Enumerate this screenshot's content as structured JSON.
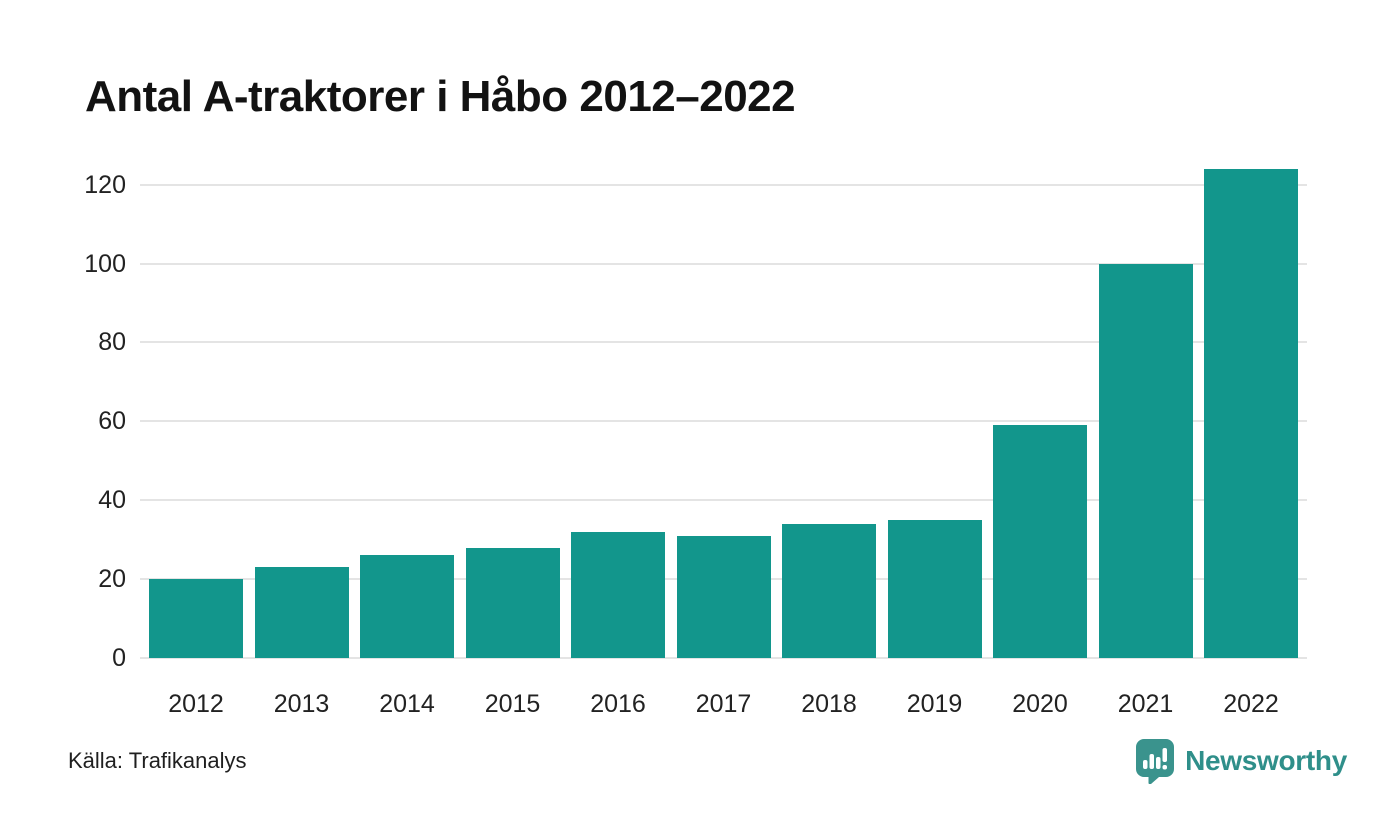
{
  "title": "Antal A-traktorer i Håbo 2012–2022",
  "source": "Källa: Trafikanalys",
  "branding": {
    "name": "Newsworthy",
    "icon": "newsworthy-pin-chart-icon",
    "color": "#2f8f8a"
  },
  "colors": {
    "bar": "#12968c",
    "grid": "#e4e4e4",
    "title_text": "#121212",
    "axis_text": "#222222",
    "background": "#ffffff"
  },
  "chart_data": {
    "type": "bar",
    "title": "Antal A-traktorer i Håbo 2012–2022",
    "categories": [
      "2012",
      "2013",
      "2014",
      "2015",
      "2016",
      "2017",
      "2018",
      "2019",
      "2020",
      "2021",
      "2022"
    ],
    "values": [
      20,
      23,
      26,
      28,
      32,
      31,
      34,
      35,
      59,
      100,
      124
    ],
    "xlabel": "",
    "ylabel": "",
    "ylim": [
      0,
      128.8
    ],
    "yticks": [
      0,
      20,
      40,
      60,
      80,
      100,
      120
    ],
    "grid": true,
    "legend": "none",
    "source": "Källa: Trafikanalys"
  }
}
